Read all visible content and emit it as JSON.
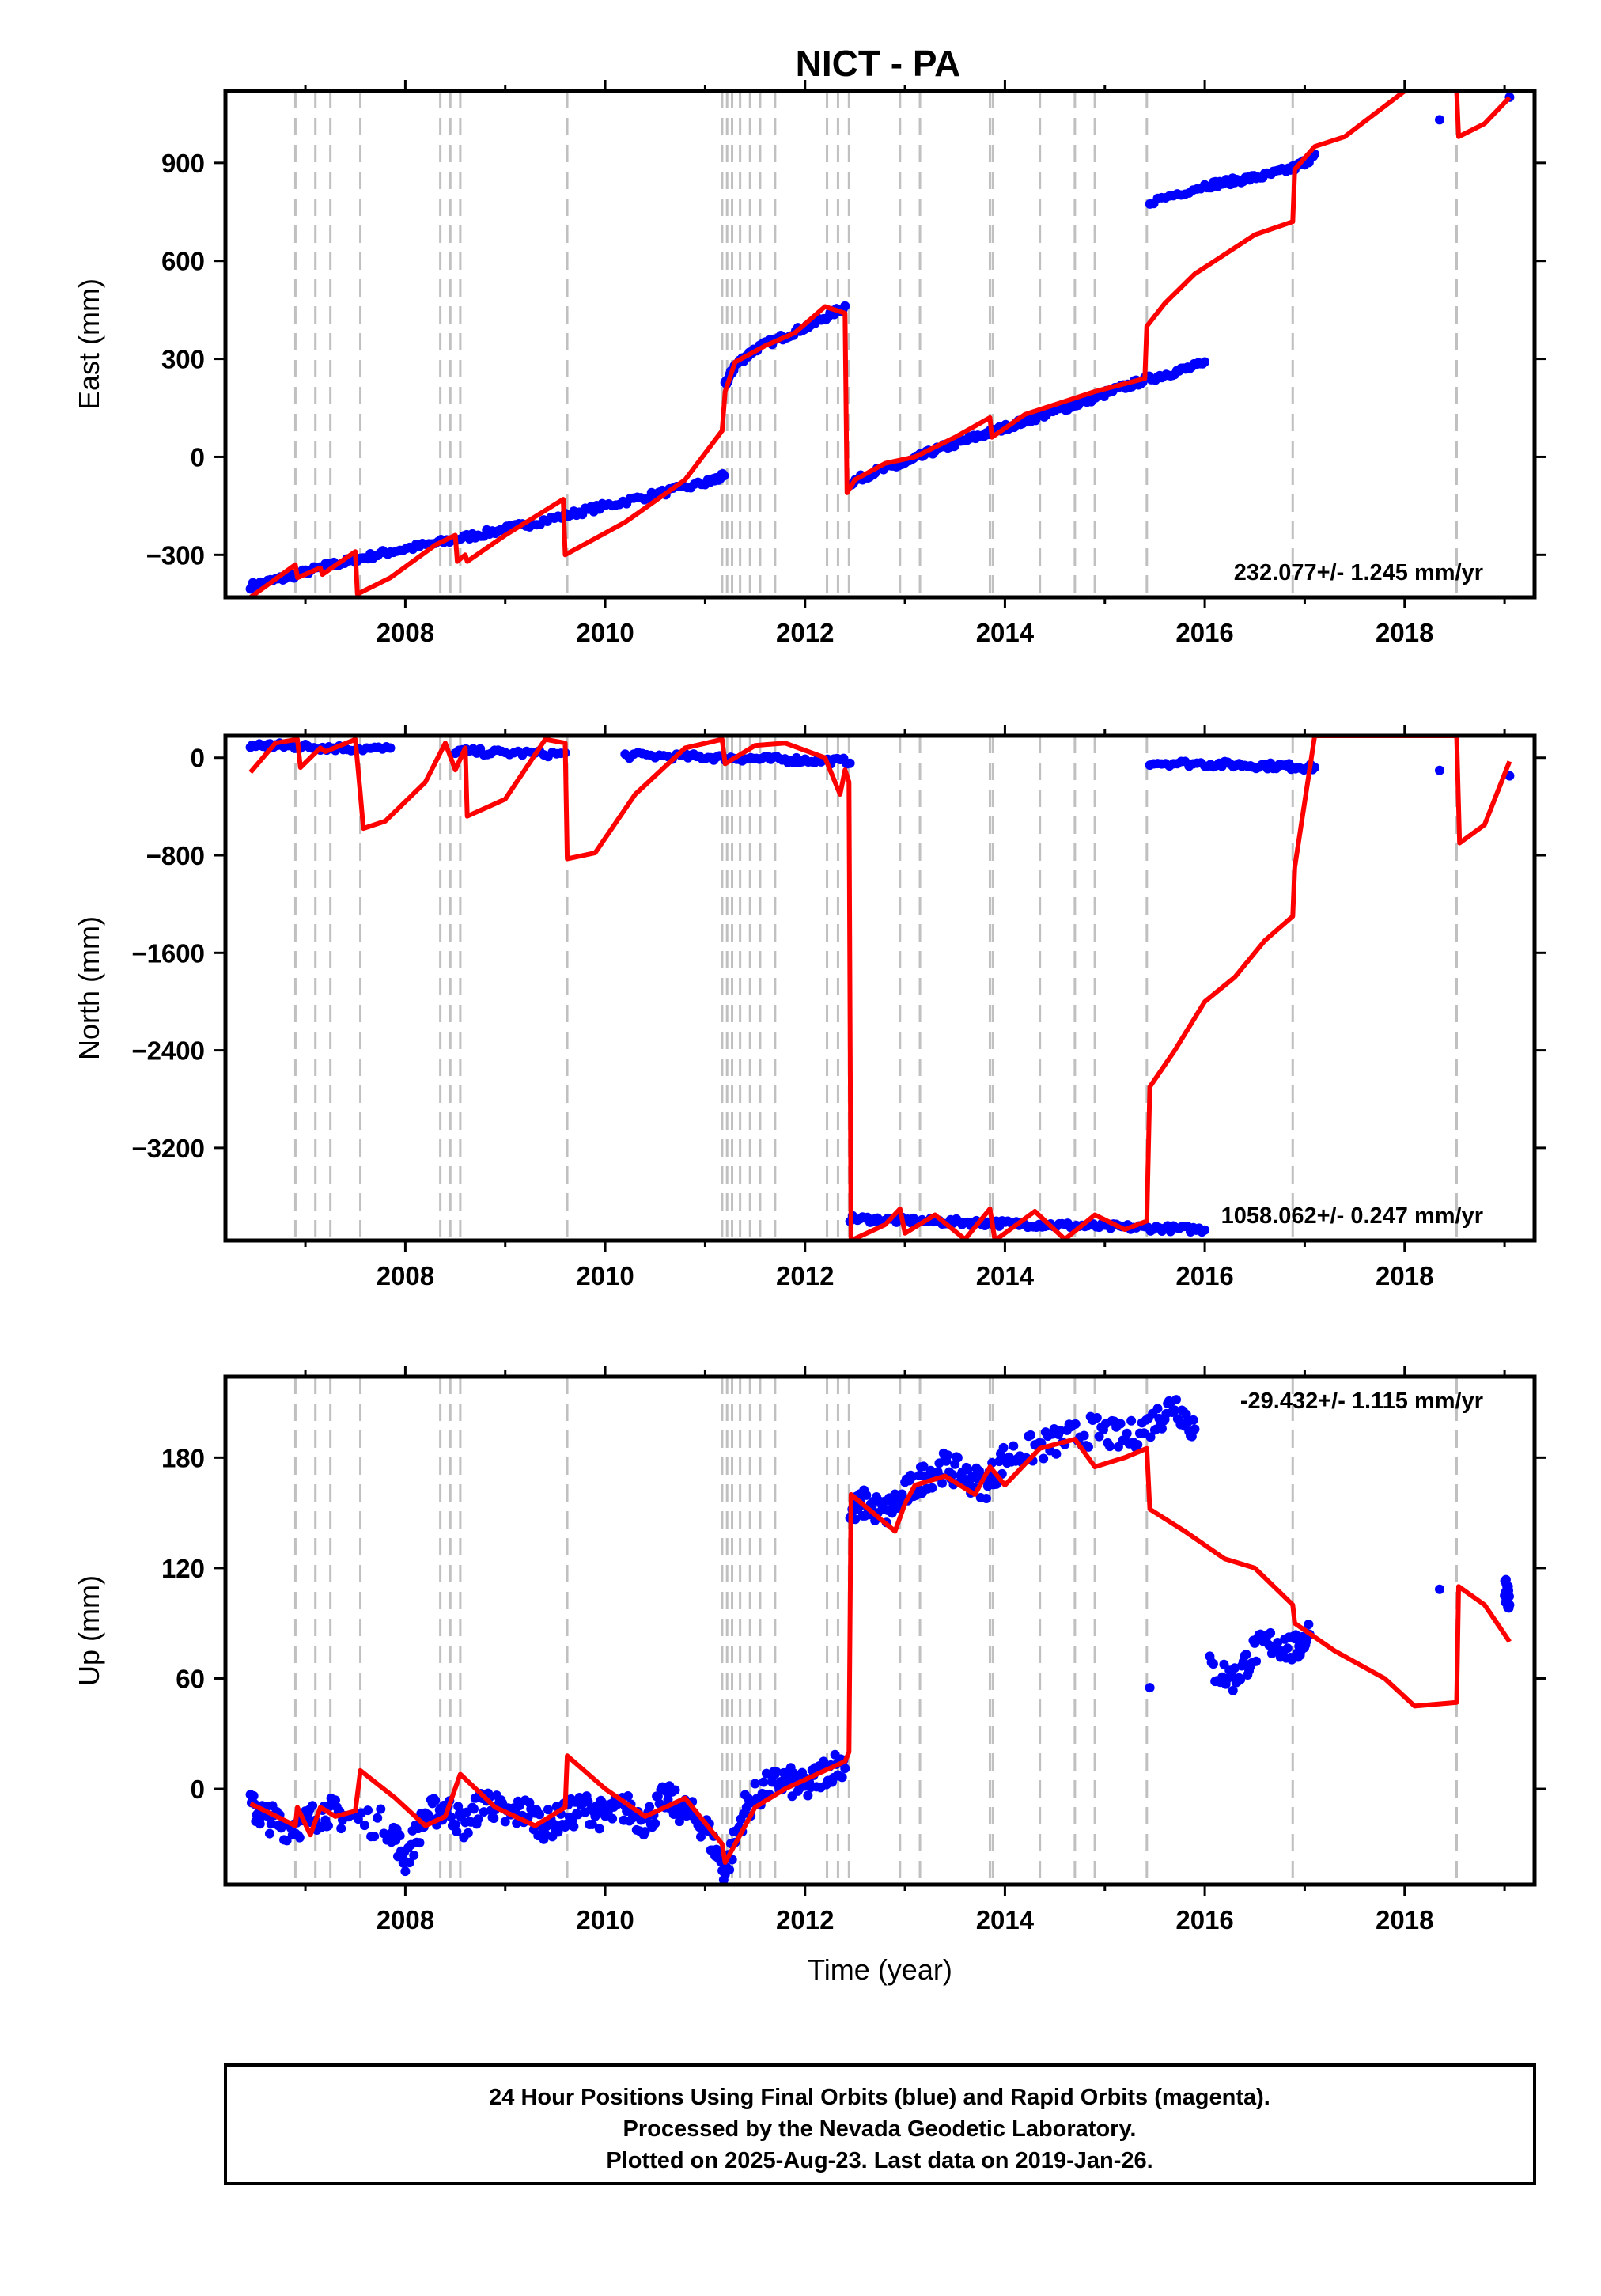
{
  "title": "NICT - PA",
  "footer": {
    "line1": "24 Hour Positions Using Final Orbits (blue) and Rapid Orbits (magenta).",
    "line2": "Processed by the Nevada Geodetic Laboratory.",
    "line3": "Plotted on 2025-Aug-23. Last data on 2019-Jan-26."
  },
  "colors": {
    "final_points": "#0000ff",
    "model_line": "#ff0000",
    "step_lines": "#c0c0c0",
    "frame": "#000000"
  },
  "chart_data": [
    {
      "type": "scatter",
      "panel": "east",
      "title": "",
      "xlabel": "",
      "ylabel": "East (mm)",
      "xlim": [
        2006.2,
        2019.3
      ],
      "ylim": [
        -430,
        1120
      ],
      "x_ticks": [
        2008,
        2010,
        2012,
        2014,
        2016,
        2018
      ],
      "y_ticks": [
        -300,
        0,
        300,
        600,
        900
      ],
      "rate_label": "232.077+/- 1.245 mm/yr",
      "grid": false,
      "series": [
        {
          "role": "final-orbit positions",
          "style": "points",
          "color": "#0000ff",
          "x": [
            2006.45,
            2006.8,
            2007.2,
            2007.5,
            2007.85,
            2008.3,
            2008.7,
            2009.1,
            2009.6,
            2010.0,
            2010.5,
            2011.0,
            2011.19,
            2011.2,
            2011.3,
            2011.5,
            2011.8,
            2012.1,
            2012.4,
            2012.45,
            2012.7,
            2013.0,
            2013.3,
            2013.6,
            2013.9,
            2014.2,
            2014.5,
            2014.8,
            2015.1,
            2015.4,
            2015.7,
            2016.0,
            2015.45,
            2016.0,
            2016.3,
            2016.6,
            2016.9,
            2017.1,
            2018.35,
            2019.05
          ],
          "y": [
            -395,
            -370,
            -335,
            -315,
            -290,
            -265,
            -240,
            -215,
            -180,
            -150,
            -115,
            -80,
            -60,
            220,
            280,
            330,
            370,
            410,
            460,
            -80,
            -45,
            -20,
            20,
            50,
            80,
            110,
            140,
            170,
            205,
            235,
            260,
            285,
            780,
            830,
            845,
            860,
            885,
            920,
            1025,
            1095
          ]
        },
        {
          "role": "model",
          "style": "line",
          "color": "#ff0000",
          "x": [
            2006.45,
            2006.9,
            2006.92,
            2007.15,
            2007.17,
            2007.5,
            2007.52,
            2007.85,
            2008.3,
            2008.5,
            2008.52,
            2008.6,
            2008.62,
            2009.0,
            2009.58,
            2009.6,
            2010.2,
            2010.8,
            2011.17,
            2011.2,
            2011.3,
            2011.6,
            2011.9,
            2012.2,
            2012.4,
            2012.42,
            2012.5,
            2012.8,
            2013.1,
            2013.5,
            2013.85,
            2013.87,
            2014.2,
            2014.4,
            2014.6,
            2014.9,
            2015.15,
            2015.4,
            2015.42,
            2015.6,
            2015.9,
            2016.2,
            2016.5,
            2016.88,
            2016.9,
            2017.1,
            2017.4,
            2017.7,
            2018.0,
            2018.3,
            2018.52,
            2018.54,
            2018.8,
            2019.05
          ],
          "y": [
            -430,
            -330,
            -370,
            -340,
            -360,
            -290,
            -420,
            -370,
            -270,
            -240,
            -320,
            -300,
            -320,
            -240,
            -130,
            -300,
            -200,
            -70,
            80,
            200,
            290,
            340,
            380,
            460,
            440,
            -110,
            -70,
            -20,
            0,
            60,
            120,
            60,
            130,
            150,
            170,
            200,
            220,
            240,
            400,
            470,
            560,
            620,
            680,
            720,
            880,
            950,
            980,
            1050,
            1120,
            1120,
            1120,
            980,
            1020,
            1100
          ]
        }
      ],
      "step_epochs": [
        2006.9,
        2007.1,
        2007.25,
        2007.55,
        2008.35,
        2008.45,
        2008.55,
        2009.62,
        2011.17,
        2011.22,
        2011.27,
        2011.35,
        2011.45,
        2011.55,
        2011.7,
        2012.22,
        2012.33,
        2012.44,
        2012.95,
        2013.15,
        2013.85,
        2013.88,
        2014.35,
        2014.7,
        2014.9,
        2015.42,
        2016.88,
        2018.52
      ]
    },
    {
      "type": "scatter",
      "panel": "north",
      "title": "",
      "xlabel": "",
      "ylabel": "North (mm)",
      "xlim": [
        2006.2,
        2019.3
      ],
      "ylim": [
        -3960,
        180
      ],
      "x_ticks": [
        2008,
        2010,
        2012,
        2014,
        2016,
        2018
      ],
      "y_ticks": [
        0,
        -800,
        -1600,
        -2400,
        -3200
      ],
      "rate_label": "1058.062+/- 0.247 mm/yr",
      "grid": false,
      "series": [
        {
          "role": "final-orbit positions",
          "style": "points",
          "color": "#0000ff",
          "x": [
            2006.45,
            2006.7,
            2007.0,
            2007.3,
            2007.85,
            2008.5,
            2009.0,
            2009.6,
            2010.2,
            2010.8,
            2011.2,
            2011.6,
            2012.0,
            2012.45,
            2012.45,
            2012.8,
            2013.2,
            2013.6,
            2014.0,
            2014.4,
            2014.8,
            2015.2,
            2015.6,
            2016.0,
            2015.45,
            2016.0,
            2016.4,
            2016.8,
            2017.1,
            2018.35,
            2019.05
          ],
          "y": [
            100,
            100,
            90,
            80,
            70,
            55,
            40,
            30,
            20,
            10,
            0,
            -10,
            -20,
            -30,
            -3780,
            -3790,
            -3800,
            -3810,
            -3820,
            -3830,
            -3840,
            -3850,
            -3860,
            -3870,
            -40,
            -50,
            -60,
            -70,
            -80,
            -110,
            -130
          ]
        },
        {
          "role": "model",
          "style": "line",
          "color": "#ff0000",
          "x": [
            2006.45,
            2006.7,
            2006.92,
            2006.95,
            2007.15,
            2007.2,
            2007.5,
            2007.55,
            2007.58,
            2007.8,
            2008.2,
            2008.4,
            2008.5,
            2008.6,
            2008.62,
            2009.0,
            2009.4,
            2009.6,
            2009.62,
            2009.9,
            2010.3,
            2010.8,
            2011.17,
            2011.2,
            2011.5,
            2011.8,
            2012.2,
            2012.35,
            2012.4,
            2012.44,
            2012.46,
            2012.8,
            2012.95,
            2013.0,
            2013.3,
            2013.6,
            2013.85,
            2013.9,
            2014.3,
            2014.6,
            2014.9,
            2015.2,
            2015.42,
            2015.45,
            2015.7,
            2016.0,
            2016.3,
            2016.6,
            2016.88,
            2016.9,
            2017.1,
            2018.52,
            2018.55,
            2018.8,
            2019.05
          ],
          "y": [
            -120,
            120,
            150,
            -80,
            80,
            50,
            150,
            -300,
            -580,
            -520,
            -200,
            120,
            -100,
            80,
            -480,
            -340,
            150,
            120,
            -830,
            -780,
            -300,
            80,
            150,
            -50,
            100,
            120,
            0,
            -300,
            -100,
            -200,
            -3960,
            -3830,
            -3700,
            -3900,
            -3750,
            -3950,
            -3700,
            -3960,
            -3720,
            -3950,
            -3750,
            -3870,
            -3800,
            -2700,
            -2400,
            -2000,
            -1800,
            -1500,
            -1300,
            -900,
            180,
            180,
            -700,
            -550,
            -30
          ]
        }
      ],
      "step_epochs": [
        2006.9,
        2007.1,
        2007.25,
        2007.55,
        2008.35,
        2008.45,
        2008.55,
        2009.62,
        2011.17,
        2011.22,
        2011.27,
        2011.35,
        2011.45,
        2011.55,
        2011.7,
        2012.22,
        2012.33,
        2012.44,
        2012.95,
        2013.15,
        2013.85,
        2013.88,
        2014.35,
        2014.7,
        2014.9,
        2015.42,
        2016.88,
        2018.52
      ]
    },
    {
      "type": "scatter",
      "panel": "up",
      "title": "",
      "xlabel": "Time (year)",
      "ylabel": "Up (mm)",
      "xlim": [
        2006.2,
        2019.3
      ],
      "ylim": [
        -52,
        224
      ],
      "x_ticks": [
        2008,
        2010,
        2012,
        2014,
        2016,
        2018
      ],
      "y_ticks": [
        0,
        60,
        120,
        180
      ],
      "rate_label": "-29.432+/- 1.115 mm/yr",
      "grid": false,
      "series": [
        {
          "role": "final-orbit positions",
          "style": "points",
          "color": "#0000ff",
          "x": [
            2006.45,
            2006.6,
            2006.8,
            2007.0,
            2007.2,
            2007.4,
            2007.85,
            2008.0,
            2008.2,
            2008.4,
            2008.6,
            2008.8,
            2009.0,
            2009.2,
            2009.4,
            2009.6,
            2009.8,
            2010.0,
            2010.2,
            2010.4,
            2010.6,
            2010.8,
            2011.0,
            2011.2,
            2011.4,
            2011.6,
            2011.8,
            2012.0,
            2012.2,
            2012.4,
            2012.45,
            2012.6,
            2012.8,
            2013.0,
            2013.2,
            2013.4,
            2013.6,
            2013.8,
            2014.0,
            2014.3,
            2014.6,
            2014.9,
            2015.2,
            2015.5,
            2015.7,
            2015.9,
            2016.05,
            2016.3,
            2016.5,
            2016.7,
            2016.9,
            2017.05,
            2015.45,
            2018.35,
            2019.0,
            2019.05
          ],
          "y": [
            -10,
            -15,
            -20,
            -18,
            -12,
            -15,
            -20,
            -38,
            -15,
            -10,
            -20,
            -5,
            -15,
            -12,
            -20,
            -15,
            -10,
            -15,
            -10,
            -18,
            -5,
            -12,
            -20,
            -45,
            -10,
            0,
            5,
            0,
            10,
            15,
            150,
            155,
            150,
            160,
            170,
            175,
            170,
            165,
            180,
            185,
            190,
            195,
            190,
            200,
            210,
            195,
            65,
            60,
            75,
            80,
            75,
            85,
            63,
            104,
            112,
            100
          ],
          "note": "dense daily cloud approximated; each x has scatter around listed y"
        },
        {
          "role": "model",
          "style": "line",
          "color": "#ff0000",
          "x": [
            2006.45,
            2006.9,
            2006.92,
            2007.05,
            2007.15,
            2007.3,
            2007.5,
            2007.55,
            2007.9,
            2008.2,
            2008.4,
            2008.55,
            2008.9,
            2009.3,
            2009.6,
            2009.62,
            2010.0,
            2010.4,
            2010.8,
            2011.17,
            2011.2,
            2011.5,
            2011.8,
            2012.2,
            2012.4,
            2012.44,
            2012.46,
            2012.9,
            2013.0,
            2013.1,
            2013.4,
            2013.7,
            2013.85,
            2014.0,
            2014.35,
            2014.7,
            2014.9,
            2015.2,
            2015.42,
            2015.45,
            2015.8,
            2016.2,
            2016.5,
            2016.88,
            2016.9,
            2017.3,
            2017.8,
            2018.1,
            2018.52,
            2018.54,
            2018.8,
            2019.05
          ],
          "y": [
            -8,
            -20,
            -10,
            -25,
            -10,
            -15,
            -12,
            10,
            -5,
            -20,
            -15,
            8,
            -10,
            -20,
            -10,
            18,
            0,
            -15,
            -5,
            -30,
            -40,
            -10,
            0,
            10,
            15,
            20,
            160,
            140,
            155,
            165,
            170,
            160,
            175,
            165,
            185,
            190,
            175,
            180,
            185,
            152,
            140,
            125,
            120,
            100,
            90,
            75,
            60,
            45,
            47,
            110,
            100,
            80
          ]
        }
      ],
      "step_epochs": [
        2006.9,
        2007.1,
        2007.25,
        2007.55,
        2008.35,
        2008.45,
        2008.55,
        2009.62,
        2011.17,
        2011.22,
        2011.27,
        2011.35,
        2011.45,
        2011.55,
        2011.7,
        2012.22,
        2012.33,
        2012.44,
        2012.95,
        2013.15,
        2013.85,
        2013.88,
        2014.35,
        2014.7,
        2014.9,
        2015.42,
        2016.88,
        2018.52
      ]
    }
  ]
}
